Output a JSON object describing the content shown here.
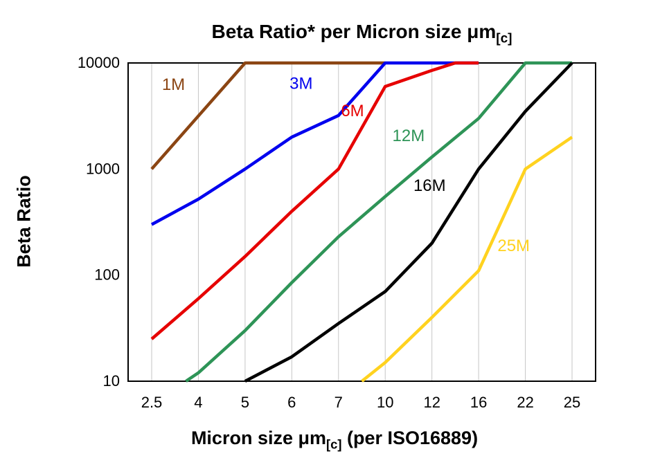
{
  "chart": {
    "title_prefix": "Beta Ratio* per Micron size μm",
    "title_subscript": "[c]",
    "ylabel": "Beta Ratio",
    "xlabel_prefix": "Micron size μm",
    "xlabel_subscript": "[c]",
    "xlabel_suffix": " (per ISO16889)"
  },
  "chart_data": {
    "type": "line",
    "title": "Beta Ratio* per Micron size μm[c]",
    "xlabel": "Micron size μm[c] (per ISO16889)",
    "ylabel": "Beta Ratio",
    "x_axis": {
      "scale": "categorical",
      "categories": [
        2.5,
        4,
        5,
        6,
        7,
        10,
        12,
        16,
        22,
        25
      ]
    },
    "y_axis": {
      "scale": "log",
      "range": [
        10,
        10000
      ],
      "ticks": [
        10,
        100,
        1000,
        10000
      ]
    },
    "grid": {
      "vertical": true,
      "horizontal": false
    },
    "series": [
      {
        "name": "1M",
        "color": "#8B4513",
        "points": [
          [
            2.5,
            1000
          ],
          [
            4,
            3162
          ],
          [
            5,
            10000
          ],
          [
            10,
            10000
          ]
        ],
        "label_pos": [
          3.2,
          6300
        ]
      },
      {
        "name": "3M",
        "color": "#0000EE",
        "points": [
          [
            2.5,
            300
          ],
          [
            4,
            520
          ],
          [
            5,
            1000
          ],
          [
            6,
            2000
          ],
          [
            7,
            3200
          ],
          [
            10,
            10000
          ],
          [
            16,
            10000
          ]
        ],
        "label_pos": [
          6.2,
          6400
        ]
      },
      {
        "name": "6M",
        "color": "#E60000",
        "points": [
          [
            2.5,
            25
          ],
          [
            4,
            60
          ],
          [
            5,
            150
          ],
          [
            6,
            400
          ],
          [
            7,
            1000
          ],
          [
            10,
            6000
          ],
          [
            12,
            8500
          ],
          [
            14,
            10000
          ],
          [
            16,
            10000
          ]
        ],
        "label_pos": [
          7.9,
          3550
        ]
      },
      {
        "name": "12M",
        "color": "#2E9457",
        "points": [
          [
            3.6,
            10
          ],
          [
            4,
            12
          ],
          [
            5,
            30
          ],
          [
            6,
            85
          ],
          [
            7,
            230
          ],
          [
            10,
            550
          ],
          [
            12,
            1300
          ],
          [
            16,
            3000
          ],
          [
            22,
            10000
          ],
          [
            25,
            10000
          ]
        ],
        "label_pos": [
          11.0,
          2070
        ]
      },
      {
        "name": "16M",
        "color": "#000000",
        "points": [
          [
            5,
            10
          ],
          [
            6,
            17
          ],
          [
            7,
            35
          ],
          [
            10,
            70
          ],
          [
            12,
            200
          ],
          [
            16,
            1000
          ],
          [
            22,
            3500
          ],
          [
            25,
            10000
          ]
        ],
        "label_pos": [
          11.9,
          700
        ]
      },
      {
        "name": "25M",
        "color": "#FFD21F",
        "points": [
          [
            8.5,
            10
          ],
          [
            10,
            15
          ],
          [
            12,
            40
          ],
          [
            16,
            110
          ],
          [
            22,
            1000
          ],
          [
            25,
            2000
          ]
        ],
        "label_pos": [
          20.5,
          190
        ]
      }
    ]
  }
}
